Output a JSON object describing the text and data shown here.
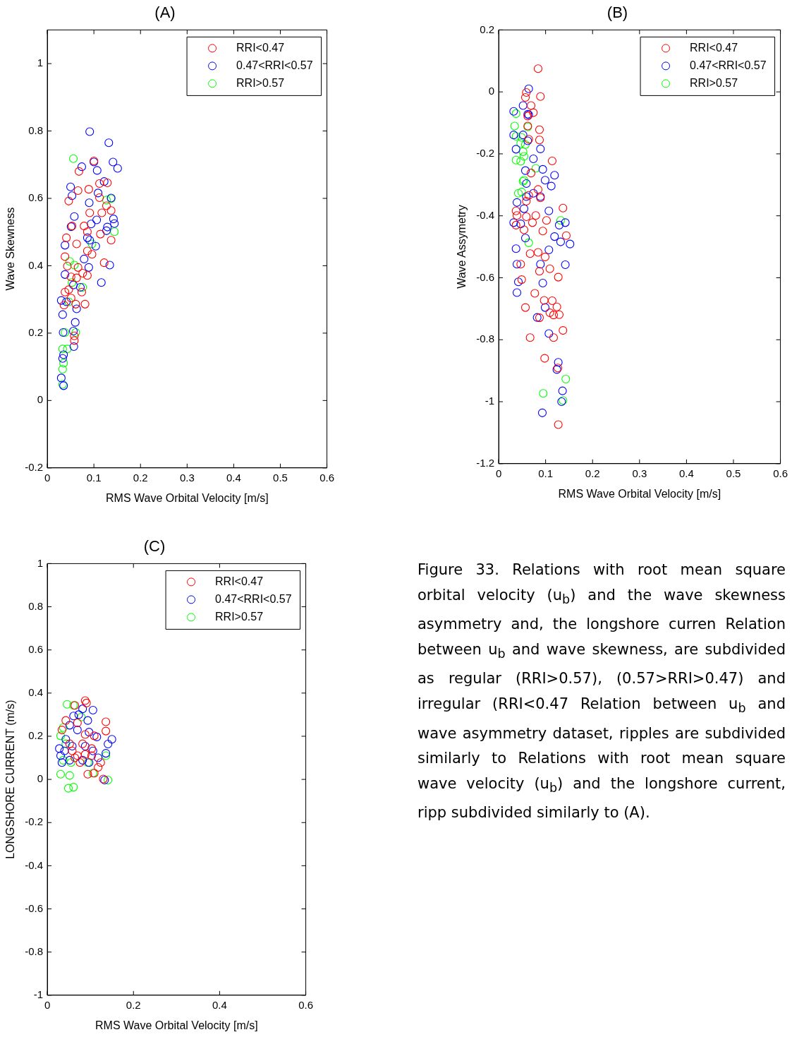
{
  "chart_data": [
    {
      "type": "scatter",
      "title": "(A)",
      "xlabel": "RMS Wave Orbital Velocity [m/s]",
      "ylabel": "Wave Skewness",
      "xlim": [
        0,
        0.6
      ],
      "xticks": [
        0,
        0.1,
        0.2,
        0.3,
        0.4,
        0.5,
        0.6
      ],
      "ylim": [
        -0.2,
        1.1
      ],
      "yticks": [
        -0.2,
        0,
        0.2,
        0.4,
        0.6,
        0.8,
        1
      ],
      "marker": "circle",
      "legend": "top right",
      "series": [
        {
          "name": "RRI<0.47",
          "color": "#ff0000",
          "x": [
            0.1,
            0.068,
            0.129,
            0.112,
            0.089,
            0.066,
            0.046,
            0.112,
            0.127,
            0.091,
            0.117,
            0.137,
            0.053,
            0.079,
            0.114,
            0.137,
            0.041,
            0.086,
            0.063,
            0.086,
            0.038,
            0.096,
            0.122,
            0.066,
            0.043,
            0.086,
            0.063,
            0.051,
            0.046,
            0.038,
            0.074,
            0.051,
            0.081,
            0.061,
            0.036,
            0.058,
            0.058,
            0.076
          ],
          "values": [
            0.711,
            0.68,
            0.646,
            0.644,
            0.627,
            0.623,
            0.592,
            0.602,
            0.578,
            0.557,
            0.557,
            0.564,
            0.518,
            0.518,
            0.494,
            0.476,
            0.483,
            0.501,
            0.465,
            0.444,
            0.427,
            0.434,
            0.409,
            0.395,
            0.399,
            0.371,
            0.364,
            0.367,
            0.329,
            0.322,
            0.322,
            0.304,
            0.286,
            0.286,
            0.283,
            0.192,
            0.178,
            0.378
          ]
        },
        {
          "name": "0.47<RRI<0.57",
          "color": "#0000ff",
          "x": [
            0.091,
            0.132,
            0.074,
            0.1,
            0.107,
            0.141,
            0.151,
            0.05,
            0.053,
            0.122,
            0.109,
            0.09,
            0.137,
            0.058,
            0.051,
            0.094,
            0.106,
            0.142,
            0.144,
            0.129,
            0.038,
            0.086,
            0.104,
            0.091,
            0.127,
            0.079,
            0.089,
            0.038,
            0.134,
            0.116,
            0.056,
            0.071,
            0.03,
            0.041,
            0.063,
            0.033,
            0.06,
            0.034,
            0.056,
            0.057,
            0.035,
            0.03,
            0.035,
            0.033
          ],
          "values": [
            0.798,
            0.765,
            0.694,
            0.708,
            0.683,
            0.708,
            0.689,
            0.634,
            0.608,
            0.65,
            0.616,
            0.587,
            0.601,
            0.546,
            0.516,
            0.524,
            0.536,
            0.539,
            0.525,
            0.515,
            0.461,
            0.483,
            0.458,
            0.476,
            0.504,
            0.42,
            0.395,
            0.374,
            0.402,
            0.35,
            0.343,
            0.336,
            0.297,
            0.293,
            0.272,
            0.255,
            0.232,
            0.202,
            0.206,
            0.16,
            0.136,
            0.067,
            0.044,
            0.125
          ]
        },
        {
          "name": "RRI>0.57",
          "color": "#00ff00",
          "x": [
            0.056,
            0.127,
            0.137,
            0.144,
            0.096,
            0.048,
            0.058,
            0.053,
            0.076,
            0.046,
            0.061,
            0.038,
            0.033,
            0.043,
            0.035,
            0.033,
            0.033
          ],
          "values": [
            0.718,
            0.595,
            0.599,
            0.501,
            0.465,
            0.413,
            0.402,
            0.35,
            0.336,
            0.293,
            0.202,
            0.202,
            0.153,
            0.153,
            0.111,
            0.093,
            0.048
          ]
        }
      ]
    },
    {
      "type": "scatter",
      "title": "(B)",
      "xlabel": "RMS Wave Orbital Velocity [m/s]",
      "ylabel": "Wave Assymetry",
      "xlim": [
        0,
        0.6
      ],
      "xticks": [
        0,
        0.1,
        0.2,
        0.3,
        0.4,
        0.5,
        0.6
      ],
      "ylim": [
        -1.2,
        0.2
      ],
      "yticks": [
        -1.2,
        -1,
        -0.8,
        -0.6,
        -0.4,
        -0.2,
        0,
        0.2
      ],
      "marker": "circle",
      "legend": "top right",
      "series": [
        {
          "name": "RRI<0.47",
          "color": "#ff0000",
          "x": [
            0.084,
            0.089,
            0.059,
            0.057,
            0.069,
            0.074,
            0.062,
            0.062,
            0.087,
            0.087,
            0.064,
            0.114,
            0.069,
            0.084,
            0.089,
            0.064,
            0.137,
            0.037,
            0.039,
            0.059,
            0.079,
            0.072,
            0.102,
            0.037,
            0.054,
            0.144,
            0.094,
            0.067,
            0.084,
            0.099,
            0.059,
            0.047,
            0.087,
            0.109,
            0.049,
            0.127,
            0.077,
            0.057,
            0.097,
            0.114,
            0.124,
            0.117,
            0.129,
            0.109,
            0.087,
            0.067,
            0.117,
            0.137,
            0.098,
            0.126,
            0.127
          ],
          "values": [
            0.075,
            -0.015,
            -0.002,
            -0.018,
            -0.044,
            -0.067,
            -0.078,
            -0.11,
            -0.122,
            -0.155,
            -0.153,
            -0.223,
            -0.262,
            -0.315,
            -0.342,
            -0.334,
            -0.375,
            -0.384,
            -0.399,
            -0.403,
            -0.399,
            -0.422,
            -0.415,
            -0.43,
            -0.445,
            -0.464,
            -0.449,
            -0.522,
            -0.518,
            -0.533,
            -0.353,
            -0.556,
            -0.579,
            -0.571,
            -0.606,
            -0.598,
            -0.65,
            -0.696,
            -0.673,
            -0.674,
            -0.694,
            -0.72,
            -0.719,
            -0.713,
            -0.729,
            -0.793,
            -0.793,
            -0.77,
            -0.86,
            -0.891,
            -1.074
          ]
        },
        {
          "name": "0.47<RRI<0.57",
          "color": "#0000ff",
          "x": [
            0.064,
            0.032,
            0.052,
            0.062,
            0.064,
            0.032,
            0.052,
            0.062,
            0.037,
            0.089,
            0.074,
            0.094,
            0.119,
            0.099,
            0.112,
            0.059,
            0.057,
            0.074,
            0.059,
            0.039,
            0.089,
            0.107,
            0.054,
            0.032,
            0.047,
            0.129,
            0.142,
            0.119,
            0.132,
            0.152,
            0.037,
            0.107,
            0.057,
            0.039,
            0.089,
            0.142,
            0.042,
            0.094,
            0.039,
            0.099,
            0.082,
            0.107,
            0.127,
            0.124,
            0.136,
            0.134,
            0.093
          ],
          "values": [
            0.01,
            -0.063,
            -0.044,
            -0.072,
            -0.074,
            -0.139,
            -0.139,
            -0.158,
            -0.185,
            -0.184,
            -0.216,
            -0.25,
            -0.269,
            -0.285,
            -0.304,
            -0.296,
            -0.254,
            -0.327,
            -0.338,
            -0.357,
            -0.338,
            -0.384,
            -0.377,
            -0.422,
            -0.426,
            -0.43,
            -0.422,
            -0.467,
            -0.484,
            -0.491,
            -0.506,
            -0.51,
            -0.472,
            -0.556,
            -0.556,
            -0.558,
            -0.613,
            -0.617,
            -0.648,
            -0.696,
            -0.728,
            -0.78,
            -0.873,
            -0.896,
            -0.965,
            -1.0,
            -1.036
          ]
        },
        {
          "name": "RRI>0.57",
          "color": "#00ff00",
          "x": [
            0.037,
            0.034,
            0.062,
            0.037,
            0.049,
            0.047,
            0.057,
            0.052,
            0.054,
            0.037,
            0.047,
            0.079,
            0.052,
            0.054,
            0.042,
            0.049,
            0.064,
            0.132,
            0.143,
            0.095,
            0.137
          ],
          "values": [
            -0.07,
            -0.11,
            -0.113,
            -0.143,
            -0.147,
            -0.166,
            -0.17,
            -0.193,
            -0.208,
            -0.22,
            -0.224,
            -0.247,
            -0.289,
            -0.285,
            -0.327,
            -0.323,
            -0.487,
            -0.415,
            -0.927,
            -0.973,
            -0.996
          ]
        }
      ]
    },
    {
      "type": "scatter",
      "title": "(C)",
      "xlabel": "RMS Wave Orbital Velocity [m/s]",
      "ylabel": "LONGSHORE CURRENT (m/s)",
      "xlim": [
        0,
        0.6
      ],
      "xticks": [
        0,
        0.2,
        0.4,
        0.6
      ],
      "ylim": [
        -1,
        1
      ],
      "yticks": [
        -1,
        -0.8,
        -0.6,
        -0.4,
        -0.2,
        0,
        0.2,
        0.4,
        0.6,
        0.8,
        1
      ],
      "marker": "circle",
      "legend": "top right",
      "series": [
        {
          "name": "RRI<0.47",
          "color": "#ff0000",
          "x": [
            0.088,
            0.091,
            0.064,
            0.136,
            0.043,
            0.07,
            0.136,
            0.109,
            0.088,
            0.082,
            0.058,
            0.052,
            0.07,
            0.088,
            0.076,
            0.103,
            0.118,
            0.094,
            0.109,
            0.13,
            0.064,
            0.034,
            0.124,
            0.103
          ],
          "values": [
            0.365,
            0.354,
            0.343,
            0.267,
            0.273,
            0.262,
            0.224,
            0.202,
            0.208,
            0.165,
            0.132,
            0.165,
            0.11,
            0.116,
            0.078,
            0.143,
            0.056,
            0.024,
            0.029,
            0.002,
            0.1,
            0.229,
            0.078,
            0.11
          ]
        },
        {
          "name": "0.47<RRI<0.57",
          "color": "#0000ff",
          "x": [
            0.106,
            0.082,
            0.061,
            0.073,
            0.094,
            0.052,
            0.07,
            0.15,
            0.141,
            0.136,
            0.115,
            0.097,
            0.028,
            0.04,
            0.058,
            0.031,
            0.052,
            0.034,
            0.088,
            0.106,
            0.097,
            0.118,
            0.133,
            0.082,
            0.043
          ],
          "values": [
            0.321,
            0.327,
            0.294,
            0.3,
            0.273,
            0.251,
            0.229,
            0.186,
            0.164,
            0.121,
            0.197,
            0.219,
            0.143,
            0.132,
            0.154,
            0.11,
            0.089,
            0.078,
            0.154,
            0.132,
            0.078,
            0.1,
            -0.003,
            0.089,
            0.186
          ]
        },
        {
          "name": "RRI>0.57",
          "color": "#00ff00",
          "x": [
            0.046,
            0.061,
            0.079,
            0.037,
            0.031,
            0.043,
            0.037,
            0.055,
            0.094,
            0.136,
            0.031,
            0.052,
            0.141,
            0.049,
            0.061,
            0.106
          ],
          "values": [
            0.348,
            0.343,
            0.289,
            0.24,
            0.202,
            0.165,
            0.089,
            0.078,
            0.078,
            0.11,
            0.024,
            0.018,
            -0.003,
            -0.041,
            -0.036,
            0.029
          ]
        }
      ]
    },
    {
      "type": "other",
      "annotations": [
        "Figure 33. Relations with root mean square orbital velocity (u$_{b}$) and the wave skewness asymmetry and, the longshore curren Relation between u$_{b}$ and wave skewness, are subdivided as regular (RRI>0.57), (0.57>RRI>0.47) and irregular (RRI<0.47 Relation between u$_{b}$ and wave asymmetry dataset, ripples are subdivided similarly to Relations with root mean square wave velocity (u$_{b}$) and the longshore current, ripp subdivided similarly to (A)."
      ]
    }
  ]
}
